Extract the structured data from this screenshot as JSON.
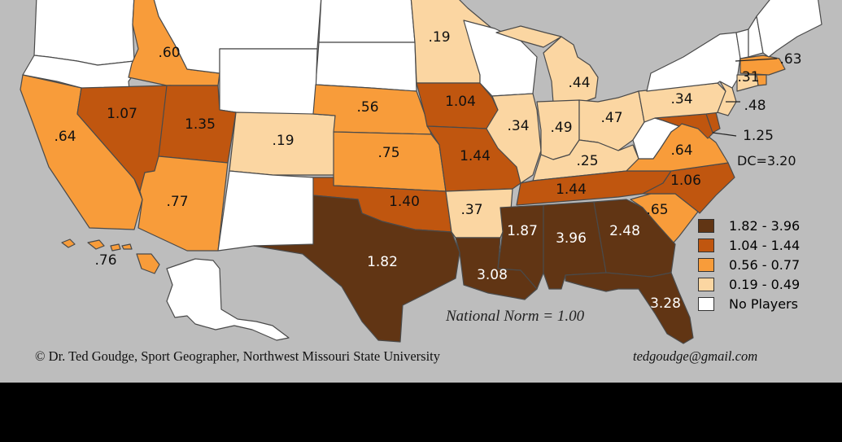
{
  "colors": {
    "class1": "#613514",
    "class2": "#c0560f",
    "class3": "#f89c3a",
    "class4": "#fbd6a2",
    "class5": "#ffffff",
    "background": "#bdbdbd"
  },
  "legend": [
    {
      "label": "1.82 - 3.96",
      "class": "class1"
    },
    {
      "label": "1.04 - 1.44",
      "class": "class2"
    },
    {
      "label": "0.56 - 0.77",
      "class": "class3"
    },
    {
      "label": "0.19 - 0.49",
      "class": "class4"
    },
    {
      "label": "No Players",
      "class": "class5"
    }
  ],
  "states": {
    "WA": {
      "class": "class5"
    },
    "OR": {
      "class": "class5"
    },
    "ID": {
      "label": ".60",
      "class": "class3"
    },
    "MT": {
      "class": "class5"
    },
    "ND": {
      "class": "class5"
    },
    "SD": {
      "class": "class5"
    },
    "WY": {
      "class": "class5"
    },
    "CA": {
      "label": ".64",
      "class": "class3"
    },
    "NV": {
      "label": "1.07",
      "class": "class2"
    },
    "UT": {
      "label": "1.35",
      "class": "class2"
    },
    "CO": {
      "label": ".19",
      "class": "class4"
    },
    "AZ": {
      "label": ".77",
      "class": "class3"
    },
    "NM": {
      "class": "class5"
    },
    "NE": {
      "label": ".56",
      "class": "class3"
    },
    "KS": {
      "label": ".75",
      "class": "class3"
    },
    "OK": {
      "label": "1.40",
      "class": "class2"
    },
    "TX": {
      "label": "1.82",
      "class": "class1"
    },
    "MN": {
      "label": ".19",
      "class": "class4"
    },
    "IA": {
      "label": "1.04",
      "class": "class2"
    },
    "MO": {
      "label": "1.44",
      "class": "class2"
    },
    "AR": {
      "label": ".37",
      "class": "class4"
    },
    "LA": {
      "label": "3.08",
      "class": "class1"
    },
    "WI": {
      "class": "class5"
    },
    "IL": {
      "label": ".34",
      "class": "class4"
    },
    "MI": {
      "label": ".44",
      "class": "class4"
    },
    "IN": {
      "label": ".49",
      "class": "class4"
    },
    "OH": {
      "label": ".47",
      "class": "class4"
    },
    "KY": {
      "label": ".25",
      "class": "class4"
    },
    "TN": {
      "label": "1.44",
      "class": "class2"
    },
    "MS": {
      "label": "1.87",
      "class": "class1"
    },
    "AL": {
      "label": "3.96",
      "class": "class1"
    },
    "GA": {
      "label": "2.48",
      "class": "class1"
    },
    "FL": {
      "label": "3.28",
      "class": "class1"
    },
    "SC": {
      "label": ".65",
      "class": "class3"
    },
    "NC": {
      "label": "1.06",
      "class": "class2"
    },
    "VA": {
      "label": ".64",
      "class": "class3"
    },
    "WV": {
      "class": "class5"
    },
    "MD": {
      "label": "1.25",
      "class": "class2"
    },
    "DE": {
      "class": "class2"
    },
    "PA": {
      "label": ".34",
      "class": "class4"
    },
    "NJ": {
      "label": ".48",
      "class": "class4"
    },
    "NY": {
      "class": "class5"
    },
    "CT": {
      "label": ".31",
      "class": "class4"
    },
    "MA": {
      "label": ".63",
      "class": "class3"
    },
    "RI": {
      "class": "class3"
    },
    "VT": {
      "class": "class5"
    },
    "NH": {
      "class": "class5"
    },
    "ME": {
      "class": "class5"
    },
    "AK": {
      "class": "class5"
    },
    "HI": {
      "label": ".76",
      "class": "class3"
    }
  },
  "dc_label": "DC=3.20",
  "norm_label": "National Norm = 1.00",
  "credit": "© Dr. Ted Goudge, Sport Geographer, Northwest Missouri State University",
  "email": "tedgoudge@gmail.com"
}
